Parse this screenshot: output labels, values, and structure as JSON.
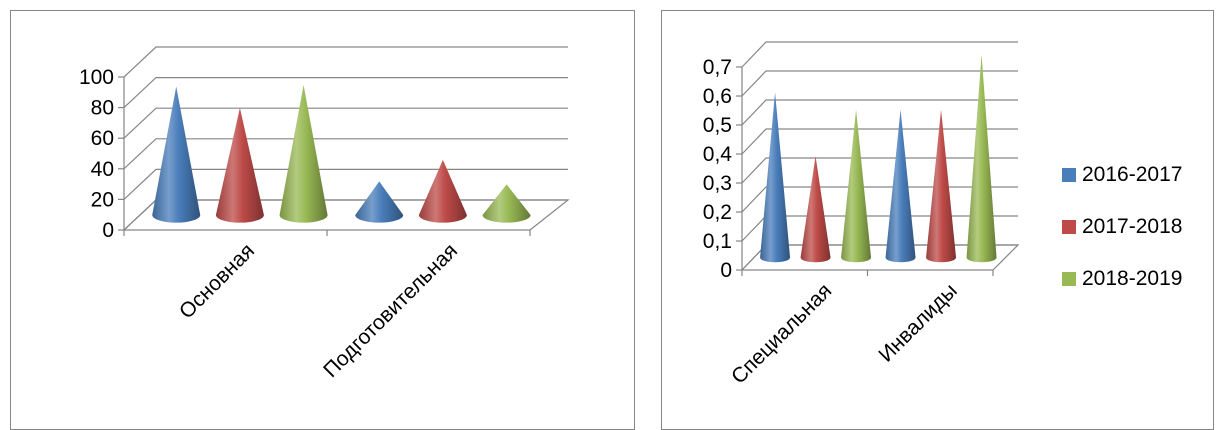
{
  "chart_data": [
    {
      "type": "bar",
      "style": "3d-cone",
      "title": "",
      "xlabel": "",
      "ylabel": "",
      "categories": [
        "Основная",
        "Подготовительная"
      ],
      "ylim": [
        0,
        100
      ],
      "yticks": [
        "0",
        "20",
        "40",
        "60",
        "80",
        "100"
      ],
      "series": [
        {
          "name": "2016-2017",
          "color": "#4a7ebb",
          "values": [
            84,
            22
          ]
        },
        {
          "name": "2017-2018",
          "color": "#be4b48",
          "values": [
            70,
            36
          ]
        },
        {
          "name": "2018-2019",
          "color": "#98b954",
          "values": [
            85,
            20
          ]
        }
      ],
      "legend": "none",
      "grid": true
    },
    {
      "type": "bar",
      "style": "3d-cone",
      "title": "",
      "xlabel": "",
      "ylabel": "",
      "categories": [
        "Специальная",
        "Инвалиды"
      ],
      "ylim": [
        0,
        0.7
      ],
      "yticks": [
        "0",
        "0,1",
        "0,2",
        "0,3",
        "0,4",
        "0,5",
        "0,6",
        "0,7"
      ],
      "series": [
        {
          "name": "2016-2017",
          "color": "#4a7ebb",
          "values": [
            0.57,
            0.51
          ]
        },
        {
          "name": "2017-2018",
          "color": "#be4b48",
          "values": [
            0.35,
            0.51
          ]
        },
        {
          "name": "2018-2019",
          "color": "#98b954",
          "values": [
            0.51,
            0.7
          ]
        }
      ],
      "legend": "right",
      "grid": true
    }
  ]
}
